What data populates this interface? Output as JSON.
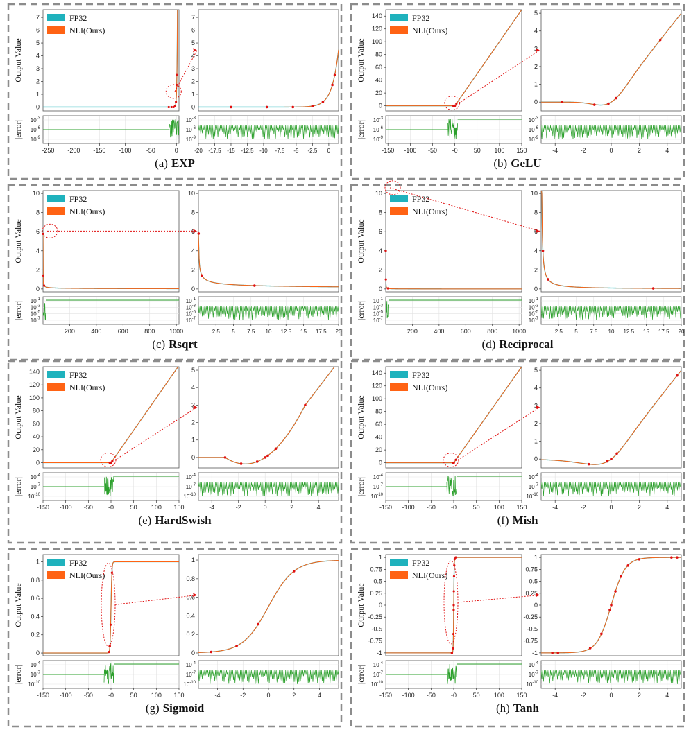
{
  "colors": {
    "fp32": "#1fb2bd",
    "nli": "#ff6314",
    "error": "#2ca02c",
    "points": "#e01010",
    "frame": "#8c8c8c"
  },
  "legend": {
    "fp32": "FP32",
    "nli": "NLI(Ours)"
  },
  "ylabel_main": "Output Value",
  "ylabel_error": "|error|",
  "chart_data": [
    {
      "id": "a",
      "label": "(a)",
      "name": "EXP",
      "type": "line",
      "func": "exp",
      "main": {
        "xlim": [
          -260,
          5
        ],
        "ylim": [
          -0.3,
          7.6
        ],
        "xticks": [
          -250,
          -200,
          -150,
          -100,
          -50,
          0
        ],
        "yticks": [
          0,
          1,
          2,
          3,
          4,
          5,
          6,
          7
        ]
      },
      "zoom": {
        "xlim": [
          -20,
          1.5
        ],
        "ylim": [
          -0.3,
          7.6
        ],
        "xticks": [
          -20,
          -17.5,
          -15,
          -12.5,
          -10,
          -7.5,
          -5,
          -2.5,
          0
        ],
        "yticks": [
          0,
          1,
          2,
          3,
          4,
          5,
          6,
          7
        ]
      },
      "points": [
        [
          -15,
          0
        ],
        [
          -9.5,
          0
        ],
        [
          -5.5,
          0
        ],
        [
          -2.5,
          0.08
        ],
        [
          -0.9,
          0.41
        ],
        [
          0.55,
          1.73
        ],
        [
          0.92,
          2.5
        ]
      ],
      "main_err": [
        "1e-3",
        "1e-6",
        "1e-9"
      ],
      "zoom_err": [
        "1e-3",
        "1e-6",
        "1e-9"
      ]
    },
    {
      "id": "b",
      "label": "(b)",
      "name": "GeLU",
      "type": "line",
      "func": "gelu",
      "main": {
        "xlim": [
          -155,
          150
        ],
        "ylim": [
          -8,
          150
        ],
        "xticks": [
          -150,
          -100,
          -50,
          0,
          50,
          100,
          150
        ],
        "yticks": [
          0,
          20,
          40,
          60,
          80,
          100,
          120,
          140
        ],
        "xtick_labels": [
          "-150",
          "-100",
          "-50",
          "-0",
          "50",
          "100",
          "150"
        ]
      },
      "zoom": {
        "xlim": [
          -5,
          5
        ],
        "ylim": [
          -0.5,
          5.2
        ],
        "xticks": [
          -4,
          -2,
          0,
          2,
          4
        ],
        "yticks": [
          0,
          1,
          2,
          3,
          4,
          5
        ]
      },
      "points": [
        [
          -3.5,
          0
        ],
        [
          -1.2,
          -0.15
        ],
        [
          -0.2,
          -0.09
        ],
        [
          0.35,
          0.22
        ],
        [
          3.5,
          3.5
        ]
      ],
      "main_err": [
        "1e-3",
        "1e-6",
        "1e-9"
      ],
      "zoom_err": [
        "1e-3",
        "1e-6",
        "1e-9"
      ]
    },
    {
      "id": "c",
      "label": "(c)",
      "name": "Rsqrt",
      "type": "line",
      "func": "rsqrt",
      "main": {
        "xlim": [
          0,
          1020
        ],
        "ylim": [
          -0.3,
          10.3
        ],
        "xticks": [
          200,
          400,
          600,
          800,
          1000
        ],
        "yticks": [
          0,
          2,
          4,
          6,
          8,
          10
        ]
      },
      "zoom": {
        "xlim": [
          0,
          20
        ],
        "ylim": [
          -0.3,
          10.3
        ],
        "xticks": [
          2.5,
          5,
          7.5,
          10,
          12.5,
          15,
          17.5,
          20
        ],
        "yticks": [
          0,
          2,
          4,
          6,
          8,
          10
        ]
      },
      "points": [
        [
          0.03,
          5.8
        ],
        [
          0.5,
          1.41
        ],
        [
          8,
          0.35
        ]
      ],
      "main_err": [
        "1e-1",
        "1e-3",
        "1e-5",
        "1e-7"
      ],
      "zoom_err": [
        "1e-1",
        "1e-3",
        "1e-5",
        "1e-7"
      ]
    },
    {
      "id": "d",
      "label": "(d)",
      "name": "Reciprocal",
      "type": "line",
      "func": "recip",
      "main": {
        "xlim": [
          0,
          1020
        ],
        "ylim": [
          -0.3,
          10.3
        ],
        "xticks": [
          200,
          400,
          600,
          800,
          1000
        ],
        "yticks": [
          0,
          2,
          4,
          6,
          8,
          10
        ]
      },
      "zoom": {
        "xlim": [
          0,
          20
        ],
        "ylim": [
          -0.3,
          10.3
        ],
        "xticks": [
          2.5,
          5,
          7.5,
          10,
          12.5,
          15,
          17.5,
          20
        ],
        "yticks": [
          0,
          2,
          4,
          6,
          8,
          10
        ]
      },
      "points": [
        [
          0.25,
          4
        ],
        [
          1,
          1
        ],
        [
          16,
          0.06
        ]
      ],
      "main_err": [
        "1e-1",
        "1e-3",
        "1e-5",
        "1e-7"
      ],
      "zoom_err": [
        "1e-1",
        "1e-3",
        "1e-5",
        "1e-7"
      ]
    },
    {
      "id": "e",
      "label": "(e)",
      "name": "HardSwish",
      "type": "line",
      "func": "hswish",
      "main": {
        "xlim": [
          -150,
          150
        ],
        "ylim": [
          -8,
          148
        ],
        "xticks": [
          -150,
          -100,
          -50,
          0,
          50,
          100,
          150
        ],
        "yticks": [
          0,
          20,
          40,
          60,
          80,
          100,
          120,
          140
        ],
        "xtick_labels": [
          "-150",
          "-100",
          "-50",
          "-0",
          "50",
          "100",
          "150"
        ]
      },
      "zoom": {
        "xlim": [
          -5,
          5.5
        ],
        "ylim": [
          -0.6,
          5.2
        ],
        "xticks": [
          -4,
          -2,
          0,
          2,
          4
        ],
        "yticks": [
          0,
          1,
          2,
          3,
          4,
          5
        ]
      },
      "points": [
        [
          -3,
          0
        ],
        [
          -1.8,
          -0.36
        ],
        [
          -0.6,
          -0.24
        ],
        [
          0,
          0
        ],
        [
          0.2,
          0.1
        ],
        [
          0.8,
          0.5
        ],
        [
          3,
          3
        ]
      ],
      "main_err": [
        "1e-4",
        "1e-7",
        "1e-10"
      ],
      "zoom_err": [
        "1e-4",
        "1e-7",
        "1e-10"
      ]
    },
    {
      "id": "f",
      "label": "(f)",
      "name": "Mish",
      "type": "line",
      "func": "mish",
      "main": {
        "xlim": [
          -150,
          150
        ],
        "ylim": [
          -8,
          150
        ],
        "xticks": [
          -150,
          -100,
          -50,
          0,
          50,
          100,
          150
        ],
        "yticks": [
          0,
          20,
          40,
          60,
          80,
          100,
          120,
          140
        ],
        "xtick_labels": [
          "-150",
          "-100",
          "-50",
          "-0",
          "50",
          "100",
          "150"
        ]
      },
      "zoom": {
        "xlim": [
          -5,
          5
        ],
        "ylim": [
          -0.5,
          5.2
        ],
        "xticks": [
          -4,
          -2,
          0,
          2,
          4
        ],
        "yticks": [
          0,
          1,
          2,
          3,
          4,
          5
        ]
      },
      "points": [
        [
          -1.6,
          -0.29
        ],
        [
          -0.3,
          -0.13
        ],
        [
          0,
          0
        ],
        [
          0.4,
          0.31
        ],
        [
          4.7,
          4.7
        ]
      ],
      "main_err": [
        "1e-4",
        "1e-7",
        "1e-10"
      ],
      "zoom_err": [
        "1e-4",
        "1e-7",
        "1e-10"
      ]
    },
    {
      "id": "g",
      "label": "(g)",
      "name": "Sigmoid",
      "type": "line",
      "func": "sigmoid",
      "main": {
        "xlim": [
          -150,
          150
        ],
        "ylim": [
          -0.03,
          1.08
        ],
        "xticks": [
          -150,
          -100,
          -50,
          0,
          50,
          100,
          150
        ],
        "yticks": [
          0,
          0.2,
          0.4,
          0.6,
          0.8,
          1.0
        ],
        "xtick_labels": [
          "-150",
          "-100",
          "-50",
          "-0",
          "50",
          "100",
          "150"
        ]
      },
      "zoom": {
        "xlim": [
          -5.5,
          5.5
        ],
        "ylim": [
          -0.03,
          1.06
        ],
        "xticks": [
          -4,
          -2,
          0,
          2,
          4
        ],
        "yticks": [
          0,
          0.2,
          0.4,
          0.6,
          0.8,
          1.0
        ]
      },
      "points": [
        [
          -4.5,
          0.011
        ],
        [
          -2.5,
          0.076
        ],
        [
          -0.8,
          0.31
        ],
        [
          2,
          0.881
        ]
      ],
      "main_err": [
        "1e-4",
        "1e-7",
        "1e-10"
      ],
      "zoom_err": [
        "1e-4",
        "1e-7",
        "1e-10"
      ]
    },
    {
      "id": "h",
      "label": "(h)",
      "name": "Tanh",
      "type": "line",
      "func": "tanh",
      "main": {
        "xlim": [
          -150,
          150
        ],
        "ylim": [
          -1.06,
          1.06
        ],
        "xticks": [
          -150,
          -100,
          -50,
          0,
          50,
          100,
          150
        ],
        "yticks": [
          -1,
          -0.75,
          -0.5,
          -0.25,
          0,
          0.25,
          0.5,
          0.75,
          1
        ],
        "xtick_labels": [
          "-150",
          "-100",
          "-50",
          "-0",
          "50",
          "100",
          "150"
        ]
      },
      "zoom": {
        "xlim": [
          -5,
          5
        ],
        "ylim": [
          -1.06,
          1.06
        ],
        "xticks": [
          -4,
          -2,
          0,
          2,
          4
        ],
        "yticks": [
          -1,
          -0.75,
          -0.5,
          -0.25,
          0,
          0.25,
          0.5,
          0.75,
          1
        ]
      },
      "points": [
        [
          -4.2,
          -1
        ],
        [
          -3.8,
          -1
        ],
        [
          -1.5,
          -0.9
        ],
        [
          -0.7,
          -0.6
        ],
        [
          -0.1,
          -0.1
        ],
        [
          0,
          0
        ],
        [
          0.3,
          0.29
        ],
        [
          0.7,
          0.6
        ],
        [
          1.2,
          0.83
        ],
        [
          2,
          0.96
        ],
        [
          4.3,
          1
        ],
        [
          4.7,
          1
        ]
      ],
      "main_err": [
        "1e-4",
        "1e-7",
        "1e-10"
      ],
      "zoom_err": [
        "1e-4",
        "1e-7",
        "1e-10"
      ]
    }
  ]
}
